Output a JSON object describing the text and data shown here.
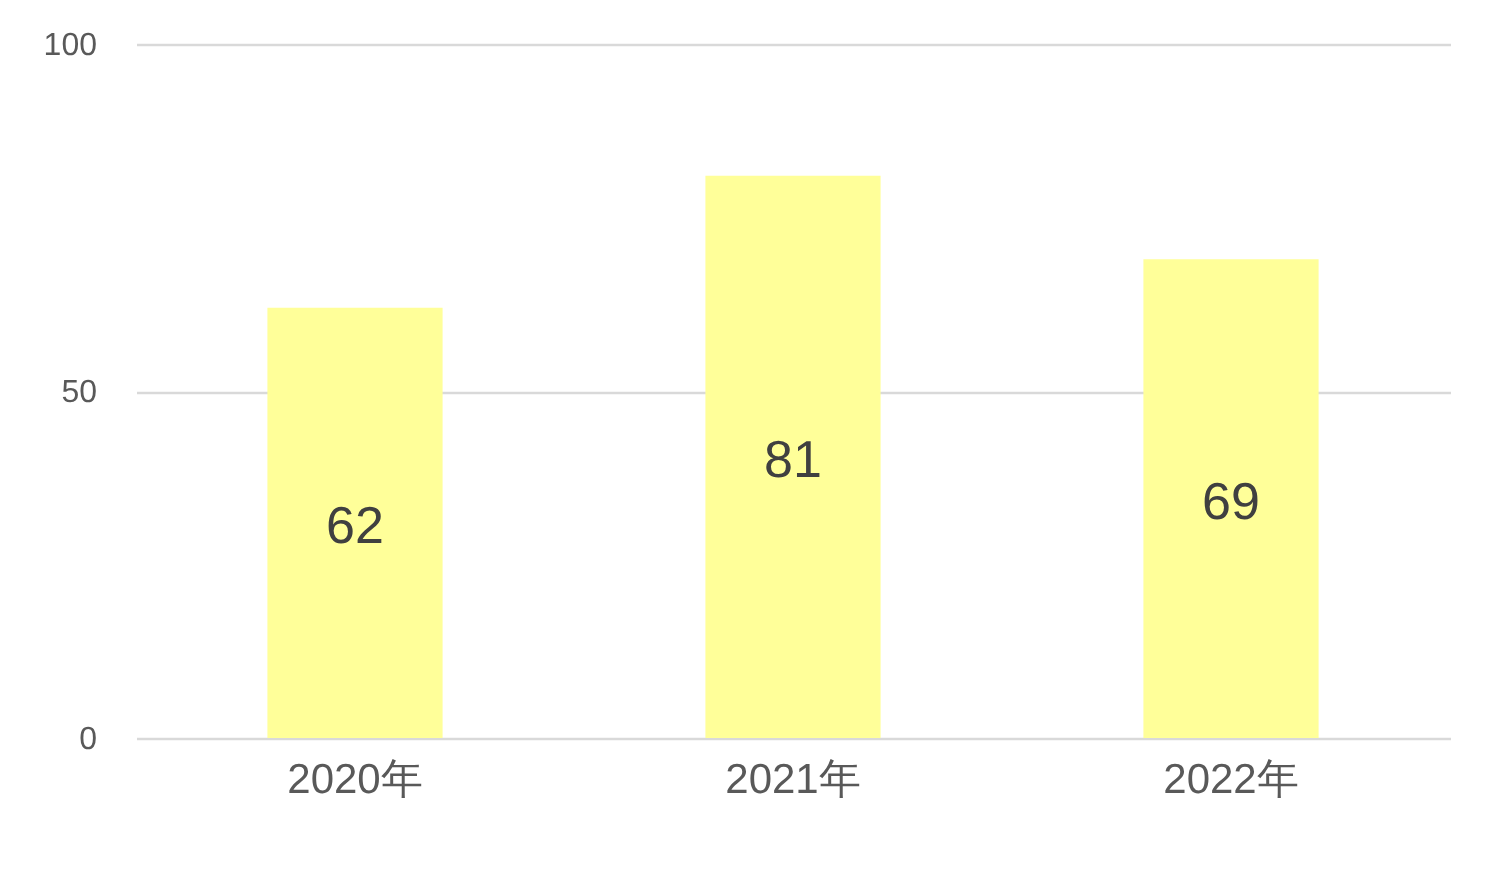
{
  "chart_data": {
    "type": "bar",
    "categories": [
      "2020年",
      "2021年",
      "2022年"
    ],
    "values": [
      62,
      81,
      69
    ],
    "color": "#ffff99",
    "ylim": [
      0,
      100
    ],
    "yticks": [
      0,
      50,
      100
    ],
    "grid": "y",
    "data_labels": true
  }
}
